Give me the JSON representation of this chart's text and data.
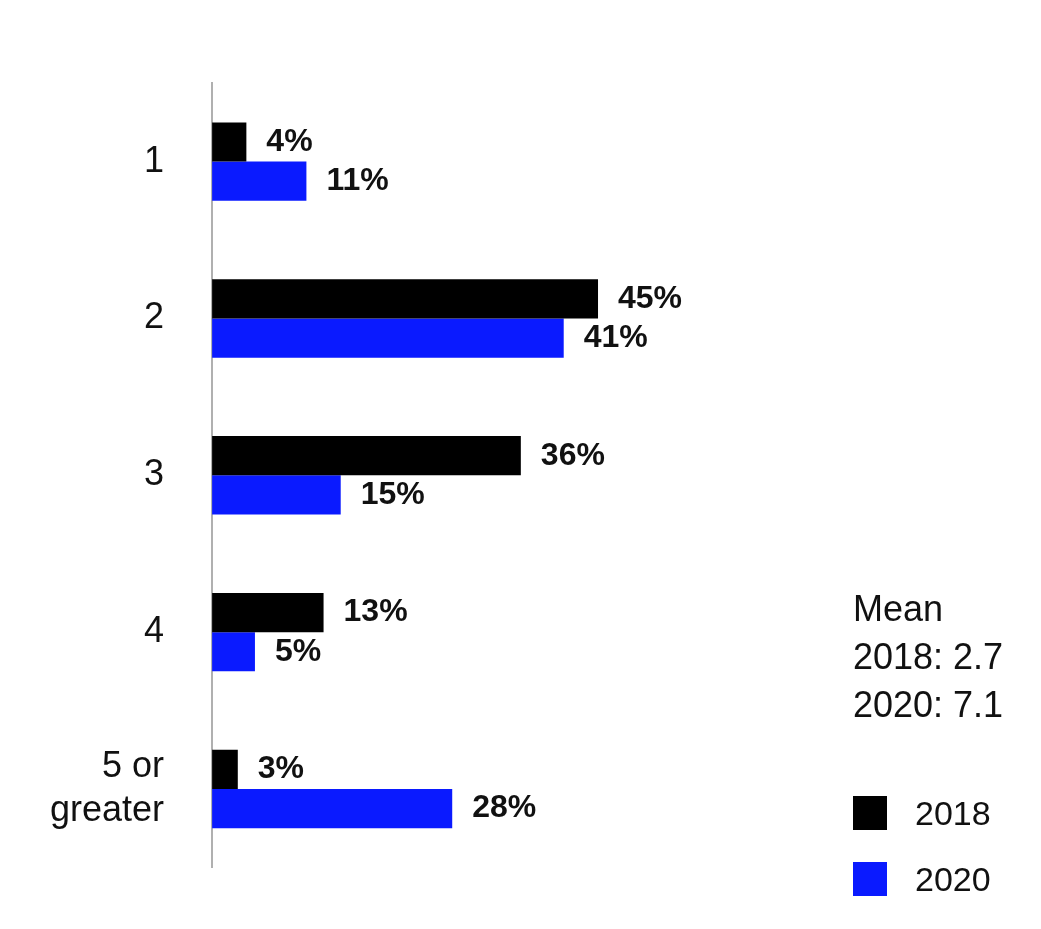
{
  "chart_data": {
    "type": "bar",
    "orientation": "horizontal",
    "categories": [
      "1",
      "2",
      "3",
      "4",
      "5 or greater"
    ],
    "series": [
      {
        "name": "2018",
        "color": "#000000",
        "values": [
          4,
          45,
          36,
          13,
          3
        ],
        "value_labels": [
          "4%",
          "45%",
          "36%",
          "13%",
          "3%"
        ]
      },
      {
        "name": "2020",
        "color": "#0a1aff",
        "values": [
          11,
          41,
          15,
          5,
          28
        ],
        "value_labels": [
          "11%",
          "41%",
          "15%",
          "5%",
          "28%"
        ]
      }
    ],
    "annotations": [
      "Mean\n2018: 2.7\n2020: 7.1"
    ],
    "legend": "bottom right"
  }
}
